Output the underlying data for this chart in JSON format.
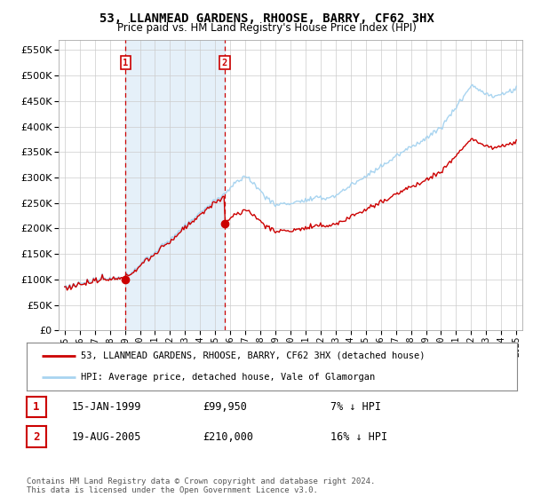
{
  "title": "53, LLANMEAD GARDENS, RHOOSE, BARRY, CF62 3HX",
  "subtitle": "Price paid vs. HM Land Registry's House Price Index (HPI)",
  "legend_line1": "53, LLANMEAD GARDENS, RHOOSE, BARRY, CF62 3HX (detached house)",
  "legend_line2": "HPI: Average price, detached house, Vale of Glamorgan",
  "transaction1_date": "15-JAN-1999",
  "transaction1_price": "£99,950",
  "transaction1_hpi": "7% ↓ HPI",
  "transaction1_year": 1999.04,
  "transaction1_value": 99950,
  "transaction2_date": "19-AUG-2005",
  "transaction2_price": "£210,000",
  "transaction2_hpi": "16% ↓ HPI",
  "transaction2_year": 2005.63,
  "transaction2_value": 210000,
  "footer": "Contains HM Land Registry data © Crown copyright and database right 2024.\nThis data is licensed under the Open Government Licence v3.0.",
  "ylim_min": 0,
  "ylim_max": 570000,
  "hpi_color": "#a8d4f0",
  "hpi_fill_color": "#daeaf7",
  "price_color": "#cc0000",
  "marker_color": "#cc0000",
  "vline_color": "#cc0000",
  "background_color": "#ffffff",
  "grid_color": "#cccccc"
}
